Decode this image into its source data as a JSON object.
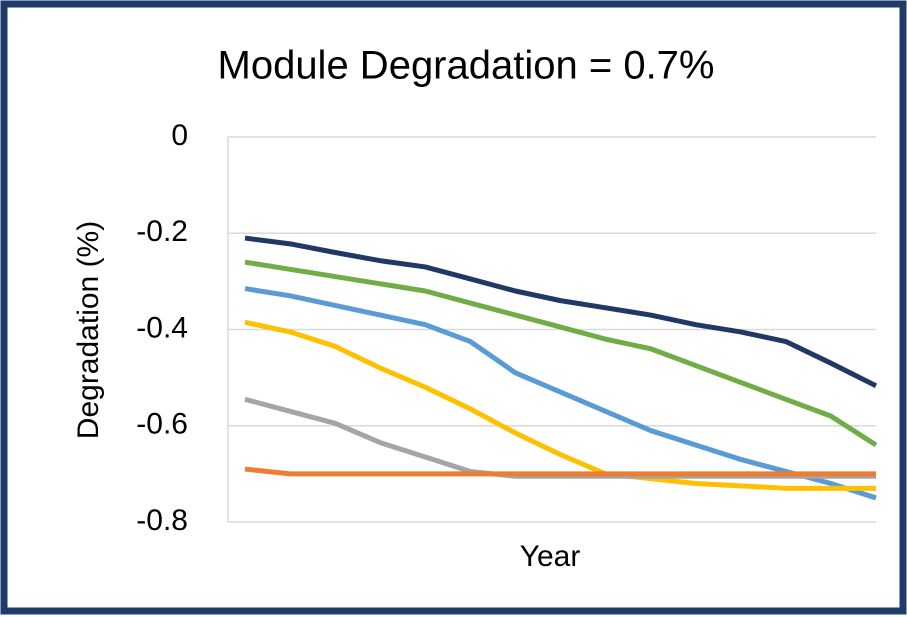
{
  "chart_data": {
    "type": "line",
    "title": "Module Degradation = 0.7%",
    "x_label": "Year",
    "y_label": "Degradation (%)",
    "categories": [
      null,
      null,
      null,
      null,
      null,
      null,
      null,
      null,
      null,
      null,
      null,
      null,
      null,
      null,
      null
    ],
    "series": [
      {
        "color": "#1f3864",
        "values": [
          -0.21,
          -0.222,
          -0.24,
          -0.257,
          -0.27,
          -0.295,
          -0.32,
          -0.34,
          -0.355,
          -0.37,
          -0.39,
          -0.405,
          -0.425,
          -0.47,
          -0.517
        ]
      },
      {
        "color": "#70ad47",
        "values": [
          -0.26,
          -0.275,
          -0.29,
          -0.305,
          -0.32,
          -0.345,
          -0.37,
          -0.395,
          -0.42,
          -0.44,
          -0.475,
          -0.51,
          -0.545,
          -0.58,
          -0.64
        ]
      },
      {
        "color": "#5b9bd5",
        "values": [
          -0.315,
          -0.33,
          -0.35,
          -0.37,
          -0.39,
          -0.425,
          -0.49,
          -0.53,
          -0.57,
          -0.61,
          -0.64,
          -0.67,
          -0.695,
          -0.72,
          -0.75
        ]
      },
      {
        "color": "#ffc000",
        "values": [
          -0.385,
          -0.405,
          -0.435,
          -0.48,
          -0.52,
          -0.565,
          -0.615,
          -0.66,
          -0.7,
          -0.71,
          -0.72,
          -0.725,
          -0.73,
          -0.73,
          -0.73
        ]
      },
      {
        "color": "#a5a5a5",
        "values": [
          -0.545,
          -0.57,
          -0.595,
          -0.635,
          -0.665,
          -0.695,
          -0.705,
          -0.705,
          -0.705,
          -0.705,
          -0.705,
          -0.705,
          -0.705,
          -0.705,
          -0.705
        ]
      },
      {
        "color": "#ed7d31",
        "values": [
          -0.69,
          -0.7,
          -0.7,
          -0.7,
          -0.7,
          -0.7,
          -0.7,
          -0.7,
          -0.7,
          -0.7,
          -0.7,
          -0.7,
          -0.7,
          -0.7,
          -0.7
        ]
      }
    ],
    "ylim": [
      -0.8,
      0
    ],
    "yticks": [
      0,
      -0.2,
      -0.4,
      -0.6,
      -0.8
    ],
    "grid": true
  }
}
